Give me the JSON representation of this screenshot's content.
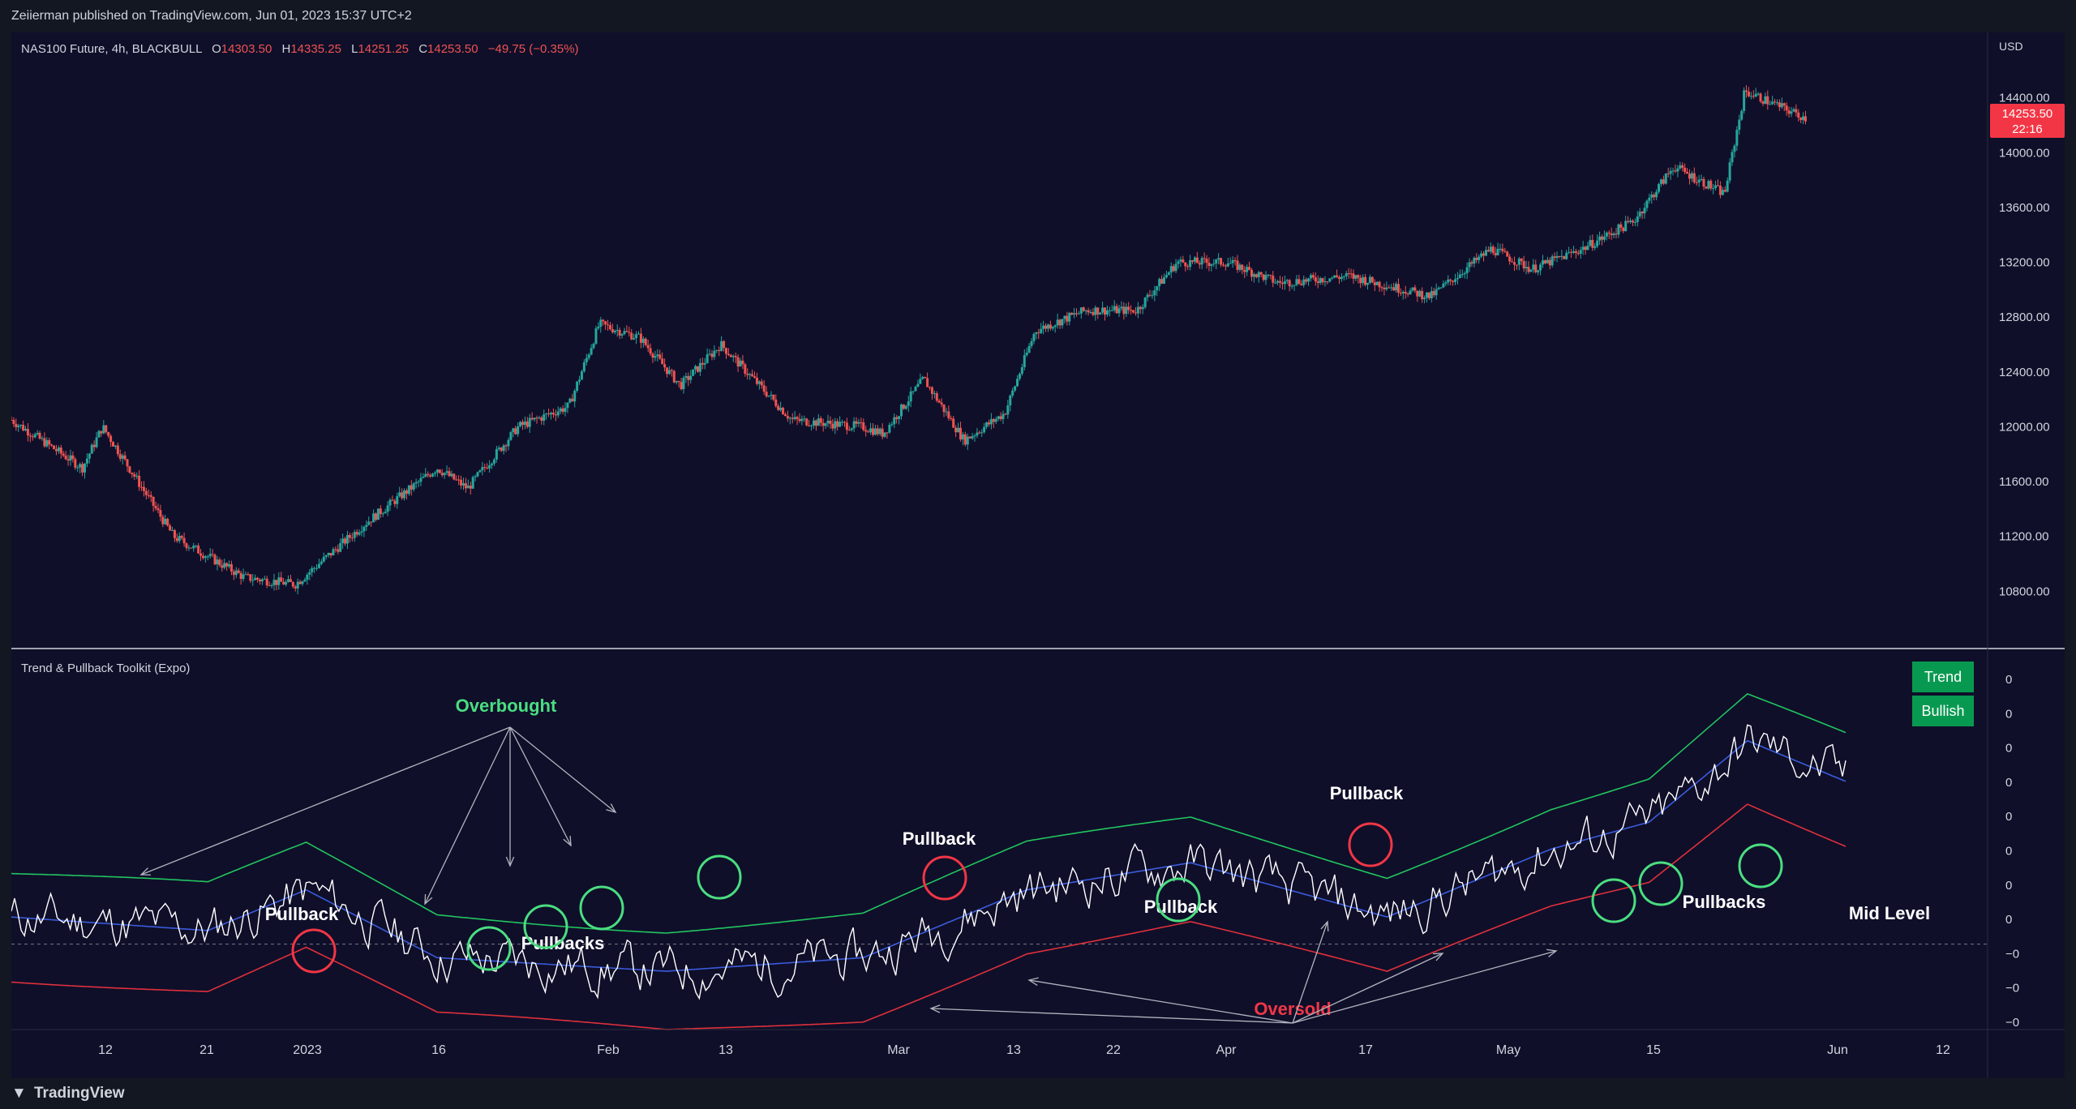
{
  "publish_line": "Zeiierman published on TradingView.com, Jun 01, 2023 15:37 UTC+2",
  "footer_brand": "TradingView",
  "colors": {
    "background": "#0f0f2a",
    "up_candle": "#26a69a",
    "down_candle": "#ef5350",
    "price_label": "#f23645",
    "upper_band": "#22c55e",
    "mid_band": "#3b5bdb",
    "lower_band": "#e0303a",
    "oscillator": "#ffffff",
    "overbought_text": "#4ade80",
    "oversold_text": "#f23645",
    "badge": "#089950"
  },
  "header": {
    "symbol": "NAS100 Future, 4h, BLACKBULL",
    "o_label": "O",
    "o_value": "14303.50",
    "h_label": "H",
    "h_value": "14335.25",
    "l_label": "L",
    "l_value": "14251.25",
    "c_label": "C",
    "c_value": "14253.50",
    "change": "−49.75 (−0.35%)"
  },
  "price_axis": {
    "currency": "USD",
    "ticks": [
      "14400.00",
      "14000.00",
      "13600.00",
      "13200.00",
      "12800.00",
      "12400.00",
      "12000.00",
      "11600.00",
      "11200.00",
      "10800.00"
    ],
    "last_price": "14253.50",
    "countdown": "22:16"
  },
  "indicator": {
    "title": "Trend & Pullback Toolkit (Expo)",
    "axis_ticks": [
      "0",
      "0",
      "0",
      "0",
      "0",
      "0",
      "0",
      "0",
      "−0",
      "−0",
      "−0"
    ],
    "badge_trend": "Trend",
    "badge_bullish": "Bullish"
  },
  "annotations": {
    "overbought": "Overbought",
    "oversold": "Oversold",
    "pullback": "Pullback",
    "pullbacks": "Pullbacks",
    "mid_level": "Mid Level"
  },
  "time_axis": [
    "12",
    "21",
    "2023",
    "16",
    "Feb",
    "13",
    "Mar",
    "13",
    "22",
    "Apr",
    "17",
    "May",
    "15",
    "Jun",
    "12"
  ],
  "chart_data": [
    {
      "type": "candlestick",
      "title": "NAS100 Future, 4h, BLACKBULL",
      "ylabel": "USD",
      "ylim": [
        10500,
        14700
      ],
      "x_labels": [
        "12",
        "21",
        "2023",
        "16",
        "Feb",
        "13",
        "Mar",
        "13",
        "22",
        "Apr",
        "17",
        "May",
        "15",
        "Jun",
        "12"
      ],
      "approx_close_path": [
        {
          "x": "Dec 05",
          "y": 12050
        },
        {
          "x": "Dec 12",
          "y": 11700
        },
        {
          "x": "Dec 14",
          "y": 12000
        },
        {
          "x": "Dec 21",
          "y": 11200
        },
        {
          "x": "Dec 28",
          "y": 10900
        },
        {
          "x": "Jan 03",
          "y": 10850
        },
        {
          "x": "Jan 10",
          "y": 11300
        },
        {
          "x": "Jan 17",
          "y": 11700
        },
        {
          "x": "Jan 20",
          "y": 11550
        },
        {
          "x": "Jan 25",
          "y": 12000
        },
        {
          "x": "Jan 30",
          "y": 12150
        },
        {
          "x": "Feb 02",
          "y": 12750
        },
        {
          "x": "Feb 06",
          "y": 12650
        },
        {
          "x": "Feb 10",
          "y": 12300
        },
        {
          "x": "Feb 14",
          "y": 12600
        },
        {
          "x": "Feb 21",
          "y": 12050
        },
        {
          "x": "Feb 28",
          "y": 12000
        },
        {
          "x": "Mar 02",
          "y": 11950
        },
        {
          "x": "Mar 06",
          "y": 12350
        },
        {
          "x": "Mar 10",
          "y": 11900
        },
        {
          "x": "Mar 14",
          "y": 12100
        },
        {
          "x": "Mar 17",
          "y": 12700
        },
        {
          "x": "Mar 22",
          "y": 12850
        },
        {
          "x": "Mar 27",
          "y": 12850
        },
        {
          "x": "Mar 31",
          "y": 13200
        },
        {
          "x": "Apr 05",
          "y": 13200
        },
        {
          "x": "Apr 10",
          "y": 13050
        },
        {
          "x": "Apr 17",
          "y": 13100
        },
        {
          "x": "Apr 25",
          "y": 12950
        },
        {
          "x": "May 01",
          "y": 13300
        },
        {
          "x": "May 05",
          "y": 13150
        },
        {
          "x": "May 10",
          "y": 13300
        },
        {
          "x": "May 15",
          "y": 13500
        },
        {
          "x": "May 19",
          "y": 13900
        },
        {
          "x": "May 24",
          "y": 13700
        },
        {
          "x": "May 26",
          "y": 14450
        },
        {
          "x": "Jun 01",
          "y": 14253.5
        }
      ]
    },
    {
      "type": "line",
      "title": "Trend & Pullback Toolkit (Expo)",
      "series": [
        {
          "name": "",
          "color": "#ffffff"
        },
        {
          "name": "",
          "color": "#22c55e"
        },
        {
          "name": "",
          "color": "#3b5bdb"
        },
        {
          "name": "",
          "color": "#e0303a"
        }
      ]
    }
  ]
}
